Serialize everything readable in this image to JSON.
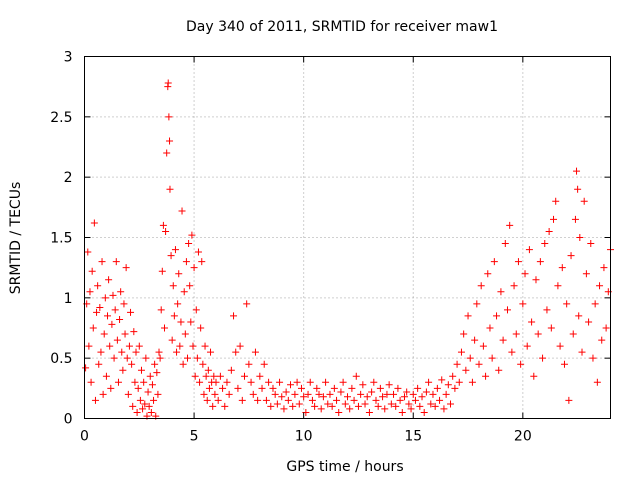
{
  "chart_data": {
    "type": "scatter",
    "title": "Day 340 of 2011, SRMTID for receiver maw1",
    "xlabel": "GPS time / hours",
    "ylabel": "SRMTID / TECUs",
    "xlim": [
      0,
      24
    ],
    "ylim": [
      0,
      3
    ],
    "x_ticks": [
      0,
      5,
      10,
      15,
      20
    ],
    "x_tick_labels": [
      "0",
      "5",
      "10",
      "15",
      "20"
    ],
    "y_ticks": [
      0,
      0.5,
      1,
      1.5,
      2,
      2.5,
      3
    ],
    "y_tick_labels": [
      "0",
      "0.5",
      "1",
      "1.5",
      "2",
      "2.5",
      "3"
    ],
    "grid": true,
    "marker": "+",
    "color": "#ff0000",
    "series": [
      {
        "name": "maw1",
        "points": [
          [
            0.05,
            0.42
          ],
          [
            0.1,
            0.95
          ],
          [
            0.15,
            1.38
          ],
          [
            0.2,
            0.6
          ],
          [
            0.25,
            1.05
          ],
          [
            0.3,
            0.3
          ],
          [
            0.35,
            1.22
          ],
          [
            0.4,
            0.75
          ],
          [
            0.45,
            1.62
          ],
          [
            0.5,
            0.15
          ],
          [
            0.55,
            0.88
          ],
          [
            0.6,
            1.1
          ],
          [
            0.65,
            0.45
          ],
          [
            0.7,
            0.92
          ],
          [
            0.75,
            0.55
          ],
          [
            0.8,
            1.3
          ],
          [
            0.85,
            0.2
          ],
          [
            0.9,
            0.7
          ],
          [
            0.95,
            1.0
          ],
          [
            1.0,
            0.35
          ],
          [
            1.05,
            0.85
          ],
          [
            1.1,
            1.15
          ],
          [
            1.15,
            0.6
          ],
          [
            1.2,
            0.25
          ],
          [
            1.25,
            0.78
          ],
          [
            1.3,
            1.02
          ],
          [
            1.35,
            0.5
          ],
          [
            1.4,
            0.9
          ],
          [
            1.45,
            1.3
          ],
          [
            1.5,
            0.65
          ],
          [
            1.55,
            0.3
          ],
          [
            1.6,
            0.82
          ],
          [
            1.65,
            1.05
          ],
          [
            1.7,
            0.55
          ],
          [
            1.75,
            0.4
          ],
          [
            1.8,
            0.95
          ],
          [
            1.85,
            0.7
          ],
          [
            1.9,
            1.25
          ],
          [
            1.95,
            0.5
          ],
          [
            2.0,
            0.2
          ],
          [
            2.05,
            0.6
          ],
          [
            2.1,
            0.88
          ],
          [
            2.15,
            0.45
          ],
          [
            2.2,
            0.1
          ],
          [
            2.25,
            0.72
          ],
          [
            2.3,
            0.3
          ],
          [
            2.35,
            0.55
          ],
          [
            2.4,
            0.05
          ],
          [
            2.45,
            0.25
          ],
          [
            2.5,
            0.6
          ],
          [
            2.55,
            0.15
          ],
          [
            2.6,
            0.4
          ],
          [
            2.65,
            0.08
          ],
          [
            2.7,
            0.3
          ],
          [
            2.75,
            0.12
          ],
          [
            2.8,
            0.5
          ],
          [
            2.85,
            0.02
          ],
          [
            2.9,
            0.22
          ],
          [
            2.95,
            0.1
          ],
          [
            3.0,
            0.35
          ],
          [
            3.05,
            0.05
          ],
          [
            3.1,
            0.28
          ],
          [
            3.15,
            0.15
          ],
          [
            3.2,
            0.45
          ],
          [
            3.25,
            0.02
          ],
          [
            3.3,
            0.38
          ],
          [
            3.35,
            0.2
          ],
          [
            3.4,
            0.55
          ],
          [
            3.45,
            0.5
          ],
          [
            3.5,
            0.9
          ],
          [
            3.55,
            1.22
          ],
          [
            3.6,
            1.6
          ],
          [
            3.65,
            0.75
          ],
          [
            3.7,
            1.55
          ],
          [
            3.75,
            2.2
          ],
          [
            3.8,
            2.75
          ],
          [
            3.82,
            2.78
          ],
          [
            3.85,
            2.5
          ],
          [
            3.88,
            2.3
          ],
          [
            3.9,
            1.9
          ],
          [
            3.95,
            1.35
          ],
          [
            4.0,
            0.65
          ],
          [
            4.05,
            1.1
          ],
          [
            4.1,
            0.85
          ],
          [
            4.15,
            1.4
          ],
          [
            4.2,
            0.55
          ],
          [
            4.25,
            0.95
          ],
          [
            4.3,
            1.2
          ],
          [
            4.35,
            0.6
          ],
          [
            4.4,
            0.8
          ],
          [
            4.45,
            1.72
          ],
          [
            4.5,
            0.45
          ],
          [
            4.55,
            1.05
          ],
          [
            4.6,
            0.7
          ],
          [
            4.65,
            1.3
          ],
          [
            4.7,
            0.5
          ],
          [
            4.75,
            1.45
          ],
          [
            4.8,
            1.1
          ],
          [
            4.85,
            0.8
          ],
          [
            4.9,
            1.52
          ],
          [
            4.95,
            0.6
          ],
          [
            5.0,
            1.25
          ],
          [
            5.05,
            0.35
          ],
          [
            5.1,
            0.9
          ],
          [
            5.15,
            0.5
          ],
          [
            5.2,
            1.38
          ],
          [
            5.25,
            0.3
          ],
          [
            5.3,
            0.75
          ],
          [
            5.35,
            1.3
          ],
          [
            5.4,
            0.45
          ],
          [
            5.45,
            0.2
          ],
          [
            5.5,
            0.6
          ],
          [
            5.55,
            0.35
          ],
          [
            5.6,
            0.15
          ],
          [
            5.65,
            0.4
          ],
          [
            5.7,
            0.25
          ],
          [
            5.75,
            0.55
          ],
          [
            5.8,
            0.3
          ],
          [
            5.85,
            0.1
          ],
          [
            5.9,
            0.35
          ],
          [
            5.95,
            0.2
          ],
          [
            6.0,
            0.3
          ],
          [
            6.1,
            0.15
          ],
          [
            6.2,
            0.35
          ],
          [
            6.3,
            0.25
          ],
          [
            6.4,
            0.1
          ],
          [
            6.5,
            0.3
          ],
          [
            6.6,
            0.2
          ],
          [
            6.7,
            0.4
          ],
          [
            6.8,
            0.85
          ],
          [
            6.9,
            0.55
          ],
          [
            7.0,
            0.25
          ],
          [
            7.1,
            0.6
          ],
          [
            7.2,
            0.15
          ],
          [
            7.3,
            0.35
          ],
          [
            7.4,
            0.95
          ],
          [
            7.5,
            0.45
          ],
          [
            7.6,
            0.3
          ],
          [
            7.7,
            0.2
          ],
          [
            7.8,
            0.55
          ],
          [
            7.9,
            0.15
          ],
          [
            8.0,
            0.35
          ],
          [
            8.1,
            0.25
          ],
          [
            8.2,
            0.45
          ],
          [
            8.3,
            0.15
          ],
          [
            8.4,
            0.3
          ],
          [
            8.5,
            0.1
          ],
          [
            8.6,
            0.25
          ],
          [
            8.7,
            0.2
          ],
          [
            8.8,
            0.12
          ],
          [
            8.9,
            0.3
          ],
          [
            9.0,
            0.18
          ],
          [
            9.1,
            0.08
          ],
          [
            9.2,
            0.22
          ],
          [
            9.3,
            0.15
          ],
          [
            9.4,
            0.28
          ],
          [
            9.5,
            0.1
          ],
          [
            9.6,
            0.2
          ],
          [
            9.7,
            0.3
          ],
          [
            9.8,
            0.12
          ],
          [
            9.9,
            0.25
          ],
          [
            10.0,
            0.18
          ],
          [
            10.1,
            0.05
          ],
          [
            10.2,
            0.2
          ],
          [
            10.3,
            0.3
          ],
          [
            10.4,
            0.15
          ],
          [
            10.5,
            0.1
          ],
          [
            10.6,
            0.25
          ],
          [
            10.7,
            0.2
          ],
          [
            10.8,
            0.08
          ],
          [
            10.9,
            0.18
          ],
          [
            11.0,
            0.3
          ],
          [
            11.1,
            0.12
          ],
          [
            11.2,
            0.2
          ],
          [
            11.3,
            0.1
          ],
          [
            11.4,
            0.25
          ],
          [
            11.5,
            0.15
          ],
          [
            11.6,
            0.05
          ],
          [
            11.7,
            0.22
          ],
          [
            11.8,
            0.3
          ],
          [
            11.9,
            0.12
          ],
          [
            12.0,
            0.18
          ],
          [
            12.1,
            0.08
          ],
          [
            12.2,
            0.25
          ],
          [
            12.3,
            0.15
          ],
          [
            12.4,
            0.35
          ],
          [
            12.5,
            0.1
          ],
          [
            12.6,
            0.2
          ],
          [
            12.7,
            0.28
          ],
          [
            12.8,
            0.12
          ],
          [
            12.9,
            0.18
          ],
          [
            13.0,
            0.05
          ],
          [
            13.1,
            0.22
          ],
          [
            13.2,
            0.3
          ],
          [
            13.3,
            0.15
          ],
          [
            13.4,
            0.1
          ],
          [
            13.5,
            0.25
          ],
          [
            13.6,
            0.18
          ],
          [
            13.7,
            0.08
          ],
          [
            13.8,
            0.2
          ],
          [
            13.9,
            0.28
          ],
          [
            14.0,
            0.12
          ],
          [
            14.1,
            0.2
          ],
          [
            14.2,
            0.1
          ],
          [
            14.3,
            0.25
          ],
          [
            14.4,
            0.15
          ],
          [
            14.5,
            0.05
          ],
          [
            14.6,
            0.18
          ],
          [
            14.7,
            0.22
          ],
          [
            14.8,
            0.12
          ],
          [
            14.9,
            0.08
          ],
          [
            15.0,
            0.2
          ],
          [
            15.1,
            0.15
          ],
          [
            15.2,
            0.25
          ],
          [
            15.3,
            0.1
          ],
          [
            15.4,
            0.18
          ],
          [
            15.5,
            0.05
          ],
          [
            15.6,
            0.22
          ],
          [
            15.7,
            0.3
          ],
          [
            15.8,
            0.12
          ],
          [
            15.9,
            0.2
          ],
          [
            16.0,
            0.1
          ],
          [
            16.1,
            0.25
          ],
          [
            16.2,
            0.15
          ],
          [
            16.3,
            0.32
          ],
          [
            16.4,
            0.08
          ],
          [
            16.5,
            0.2
          ],
          [
            16.6,
            0.28
          ],
          [
            16.7,
            0.12
          ],
          [
            16.8,
            0.35
          ],
          [
            16.9,
            0.25
          ],
          [
            17.0,
            0.45
          ],
          [
            17.1,
            0.3
          ],
          [
            17.2,
            0.55
          ],
          [
            17.3,
            0.7
          ],
          [
            17.4,
            0.4
          ],
          [
            17.5,
            0.85
          ],
          [
            17.6,
            0.5
          ],
          [
            17.7,
            0.3
          ],
          [
            17.8,
            0.65
          ],
          [
            17.9,
            0.95
          ],
          [
            18.0,
            0.45
          ],
          [
            18.1,
            1.1
          ],
          [
            18.2,
            0.6
          ],
          [
            18.3,
            0.35
          ],
          [
            18.4,
            1.2
          ],
          [
            18.5,
            0.75
          ],
          [
            18.6,
            0.5
          ],
          [
            18.7,
            1.3
          ],
          [
            18.8,
            0.85
          ],
          [
            18.9,
            0.4
          ],
          [
            19.0,
            1.05
          ],
          [
            19.1,
            0.65
          ],
          [
            19.2,
            1.45
          ],
          [
            19.3,
            0.9
          ],
          [
            19.4,
            1.6
          ],
          [
            19.5,
            0.55
          ],
          [
            19.6,
            1.1
          ],
          [
            19.7,
            0.7
          ],
          [
            19.8,
            1.3
          ],
          [
            19.9,
            0.45
          ],
          [
            20.0,
            0.95
          ],
          [
            20.1,
            1.2
          ],
          [
            20.2,
            0.6
          ],
          [
            20.3,
            1.4
          ],
          [
            20.4,
            0.8
          ],
          [
            20.5,
            0.35
          ],
          [
            20.6,
            1.15
          ],
          [
            20.7,
            0.7
          ],
          [
            20.8,
            1.3
          ],
          [
            20.9,
            0.5
          ],
          [
            21.0,
            1.45
          ],
          [
            21.1,
            0.9
          ],
          [
            21.2,
            1.55
          ],
          [
            21.3,
            0.75
          ],
          [
            21.4,
            1.65
          ],
          [
            21.5,
            1.8
          ],
          [
            21.6,
            1.1
          ],
          [
            21.7,
            0.6
          ],
          [
            21.8,
            1.25
          ],
          [
            21.9,
            0.45
          ],
          [
            22.0,
            0.95
          ],
          [
            22.1,
            0.15
          ],
          [
            22.2,
            1.35
          ],
          [
            22.3,
            0.7
          ],
          [
            22.4,
            1.65
          ],
          [
            22.45,
            2.05
          ],
          [
            22.5,
            1.9
          ],
          [
            22.55,
            0.85
          ],
          [
            22.6,
            1.5
          ],
          [
            22.7,
            0.55
          ],
          [
            22.8,
            1.8
          ],
          [
            22.9,
            1.2
          ],
          [
            23.0,
            0.8
          ],
          [
            23.1,
            1.45
          ],
          [
            23.2,
            0.5
          ],
          [
            23.3,
            0.95
          ],
          [
            23.4,
            0.3
          ],
          [
            23.5,
            1.1
          ],
          [
            23.6,
            0.65
          ],
          [
            23.7,
            1.25
          ],
          [
            23.8,
            0.75
          ],
          [
            23.9,
            1.05
          ],
          [
            24.0,
            1.4
          ]
        ]
      }
    ]
  }
}
